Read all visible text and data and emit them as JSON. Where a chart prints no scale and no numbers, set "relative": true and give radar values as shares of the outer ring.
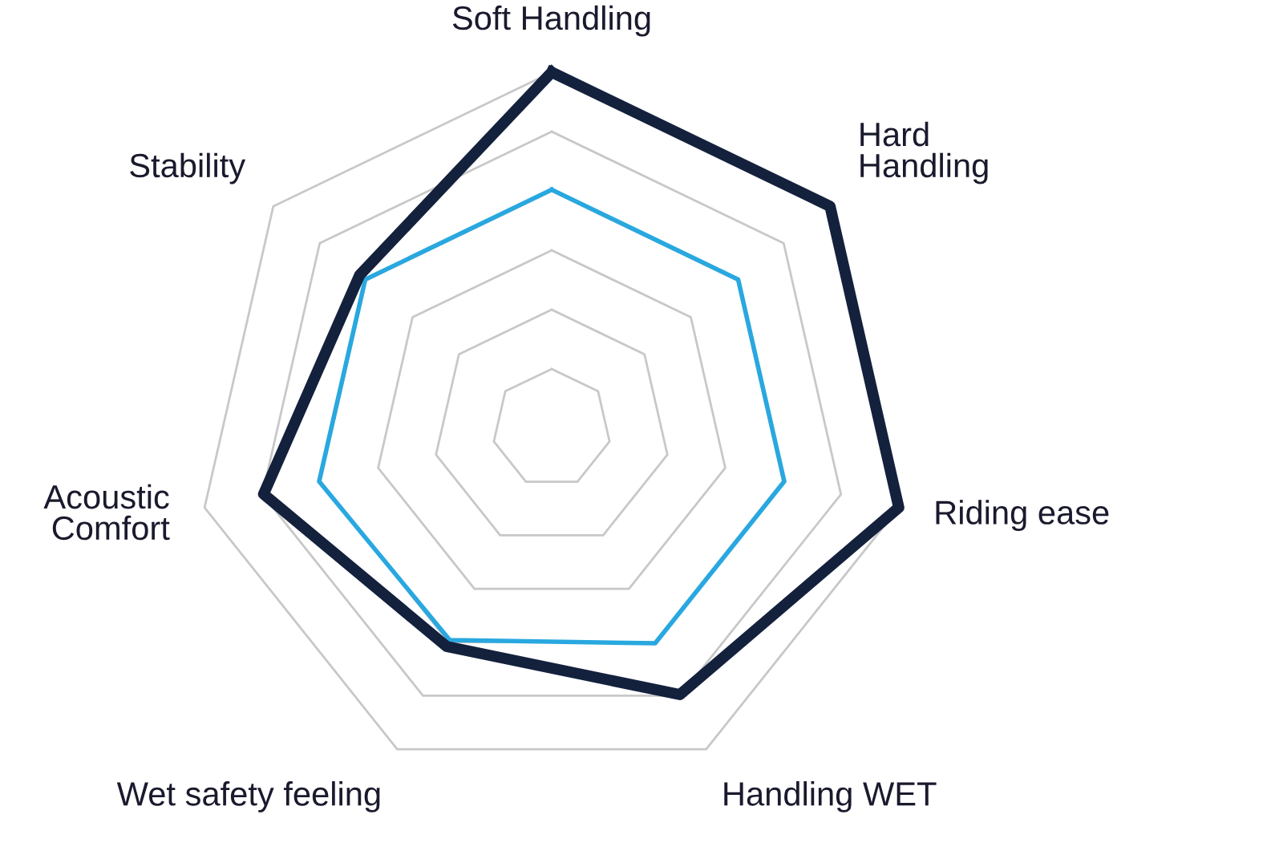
{
  "chart_data": {
    "type": "radar",
    "relative": true,
    "grid": true,
    "categories": [
      "Soft Handling",
      "Hard\nHandling",
      "Riding ease",
      "Handling WET",
      "Wet safety feeling",
      "Acoustic\nComfort",
      "Stability"
    ],
    "series": [
      {
        "color": "#29a8e0",
        "values": [
          0.67,
          0.67,
          0.67,
          0.67,
          0.66,
          0.67,
          0.67
        ]
      },
      {
        "color": "#14213d",
        "values": [
          1.0,
          1.0,
          1.0,
          0.83,
          0.68,
          0.83,
          0.69
        ]
      }
    ]
  }
}
